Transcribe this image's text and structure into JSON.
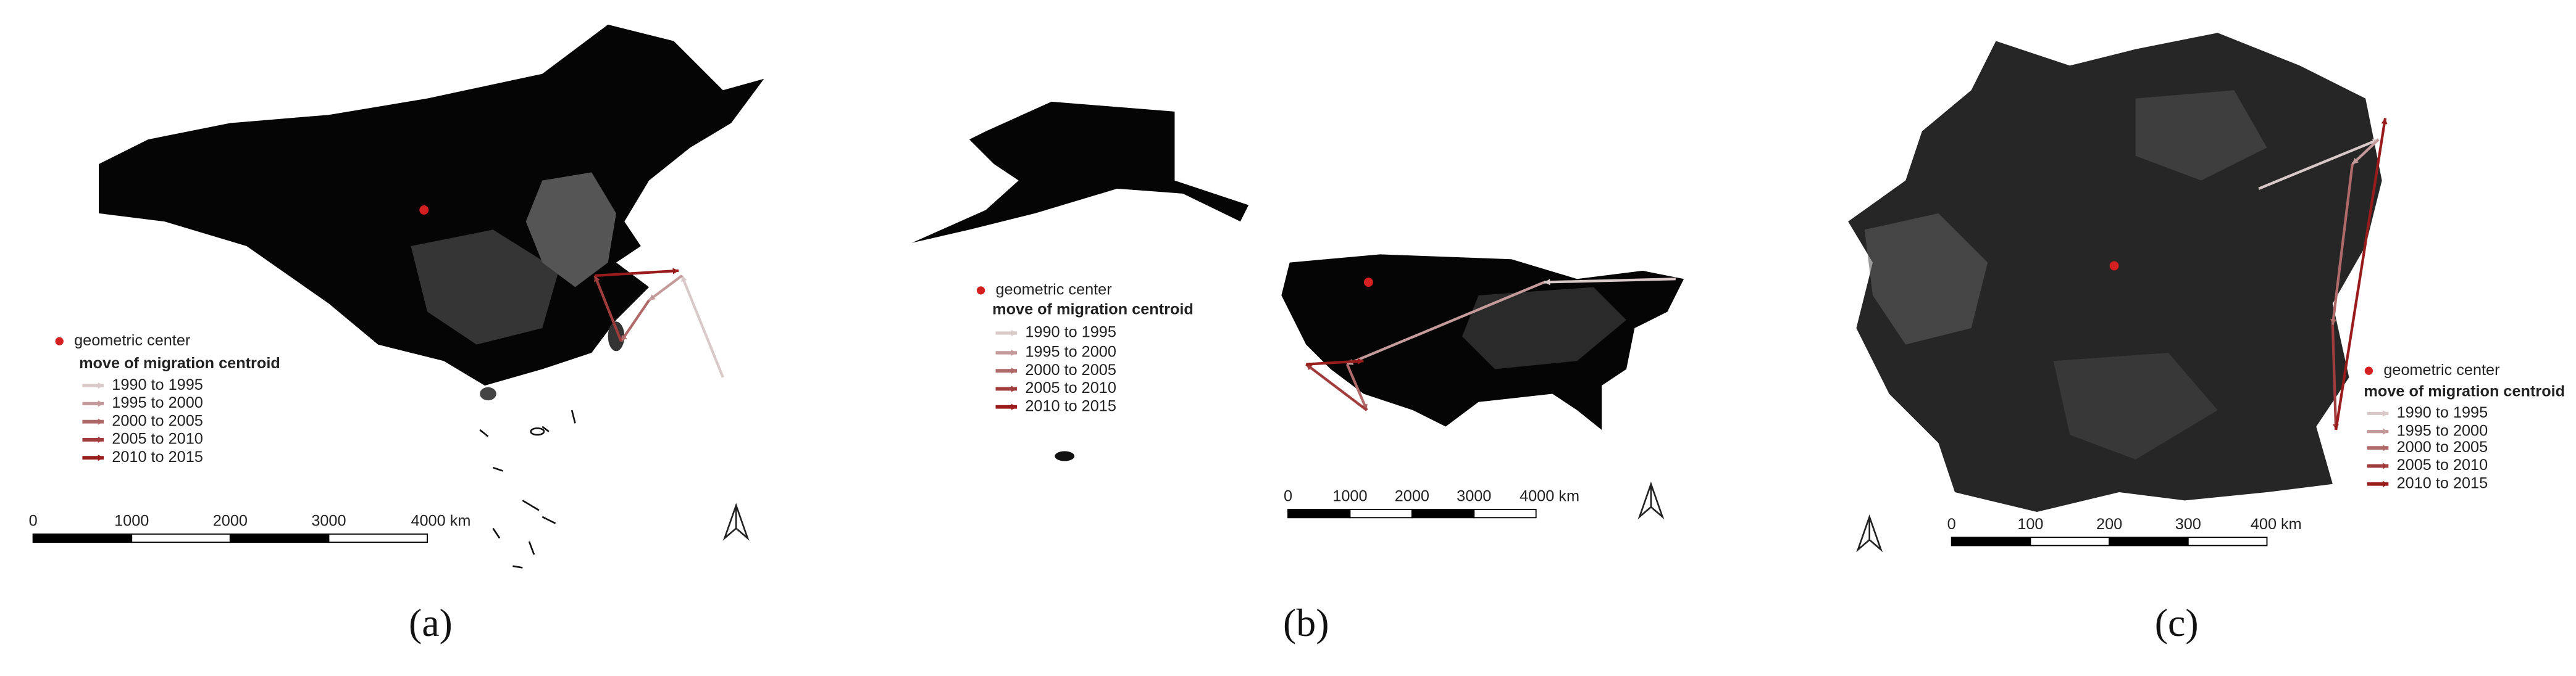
{
  "panels": [
    {
      "label": "(a)",
      "legend": {
        "center": "geometric center",
        "title": "move of migration centroid",
        "entries": [
          {
            "text": "1990 to 1995",
            "color": "#d9c9c9"
          },
          {
            "text": "1995 to 2000",
            "color": "#c49a9a"
          },
          {
            "text": "2000 to 2005",
            "color": "#b06a6a"
          },
          {
            "text": "2005 to 2010",
            "color": "#a03c3c"
          },
          {
            "text": "2010 to 2015",
            "color": "#981c1c"
          }
        ]
      },
      "scale": [
        "0",
        "1000",
        "2000",
        "3000",
        "4000 km"
      ]
    },
    {
      "label": "(b)",
      "legend": {
        "center": "geometric center",
        "title": "move of migration centroid",
        "entries": [
          {
            "text": "1990 to 1995",
            "color": "#d9c9c9"
          },
          {
            "text": "1995 to 2000",
            "color": "#c49a9a"
          },
          {
            "text": "2000 to 2005",
            "color": "#b06a6a"
          },
          {
            "text": "2005 to 2010",
            "color": "#a03c3c"
          },
          {
            "text": "2010 to 2015",
            "color": "#981c1c"
          }
        ]
      },
      "scale": [
        "0",
        "1000",
        "2000",
        "3000",
        "4000 km"
      ]
    },
    {
      "label": "(c)",
      "legend": {
        "center": "geometric center",
        "title": "move of migration centroid",
        "entries": [
          {
            "text": "1990 to 1995",
            "color": "#d9c9c9"
          },
          {
            "text": "1995 to 2000",
            "color": "#c49a9a"
          },
          {
            "text": "2000 to 2005",
            "color": "#b06a6a"
          },
          {
            "text": "2005 to 2010",
            "color": "#a03c3c"
          },
          {
            "text": "2010 to 2015",
            "color": "#981c1c"
          }
        ]
      },
      "scale": [
        "0",
        "100",
        "200",
        "300",
        "400 km"
      ]
    }
  ]
}
